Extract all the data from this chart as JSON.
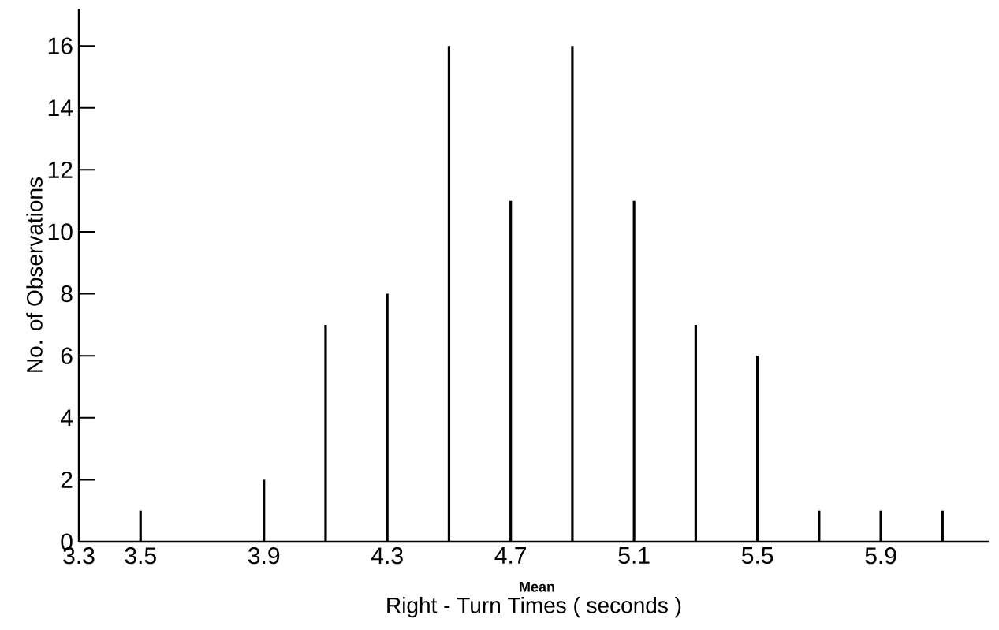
{
  "chart_data": {
    "type": "bar",
    "xlabel": "Right - Turn Times ( seconds )",
    "ylabel": "No. of Observations",
    "x": [
      3.5,
      3.9,
      4.1,
      4.3,
      4.5,
      4.7,
      4.9,
      5.1,
      5.3,
      5.5,
      5.7,
      5.9,
      6.1
    ],
    "values": [
      1,
      2,
      7,
      8,
      16,
      11,
      16,
      11,
      7,
      6,
      1,
      1,
      1
    ],
    "color": "#000000",
    "xlim": [
      3.3,
      6.25
    ],
    "ylim": [
      0,
      17.2
    ],
    "xticks": [
      3.3,
      3.5,
      3.9,
      4.3,
      4.7,
      5.1,
      5.5,
      5.9
    ],
    "yticks": [
      0,
      2,
      4,
      6,
      8,
      10,
      12,
      14,
      16
    ],
    "annotations": [
      "Mean"
    ]
  }
}
